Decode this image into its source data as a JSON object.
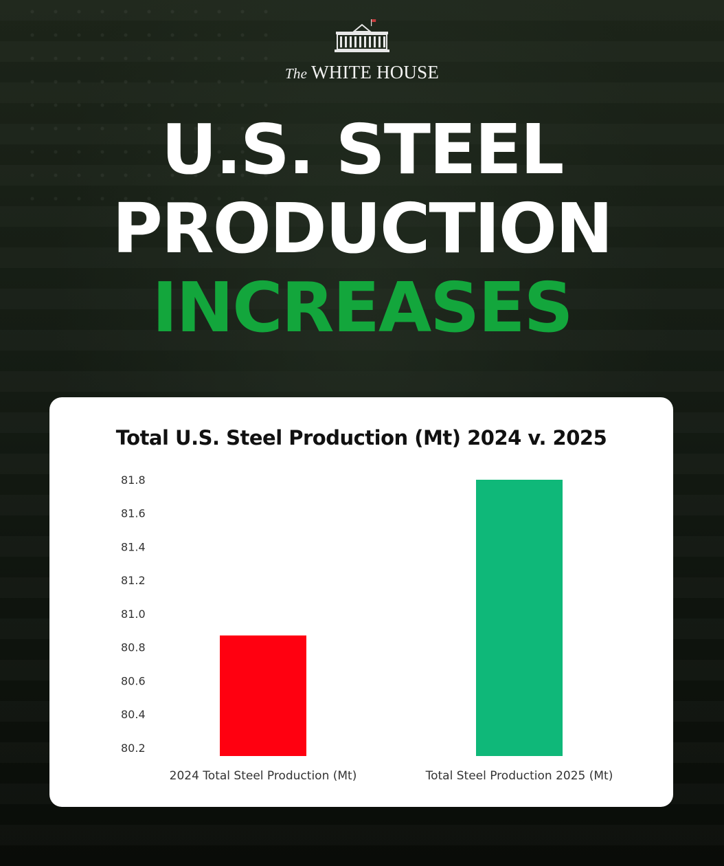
{
  "logo": {
    "prefix": "The",
    "name": "WHITE HOUSE",
    "icon": "white-house-building-icon"
  },
  "headline": {
    "line1": "U.S. STEEL",
    "line2": "PRODUCTION",
    "line3": "INCREASES",
    "line3_color": "#13a63c"
  },
  "chart_data": {
    "type": "bar",
    "title": "Total U.S. Steel Production (Mt) 2024 v. 2025",
    "categories": [
      "2024 Total Steel Production (Mt)",
      "Total Steel Production 2025 (Mt)"
    ],
    "values": [
      80.87,
      81.8
    ],
    "colors": [
      "#ff0010",
      "#0fb879"
    ],
    "yticks": [
      "80.2",
      "80.4",
      "80.6",
      "80.8",
      "81.0",
      "81.2",
      "81.4",
      "81.6",
      "81.8"
    ],
    "ylim": [
      80.15,
      81.8
    ],
    "xlabel": "",
    "ylabel": "",
    "grid": false
  }
}
